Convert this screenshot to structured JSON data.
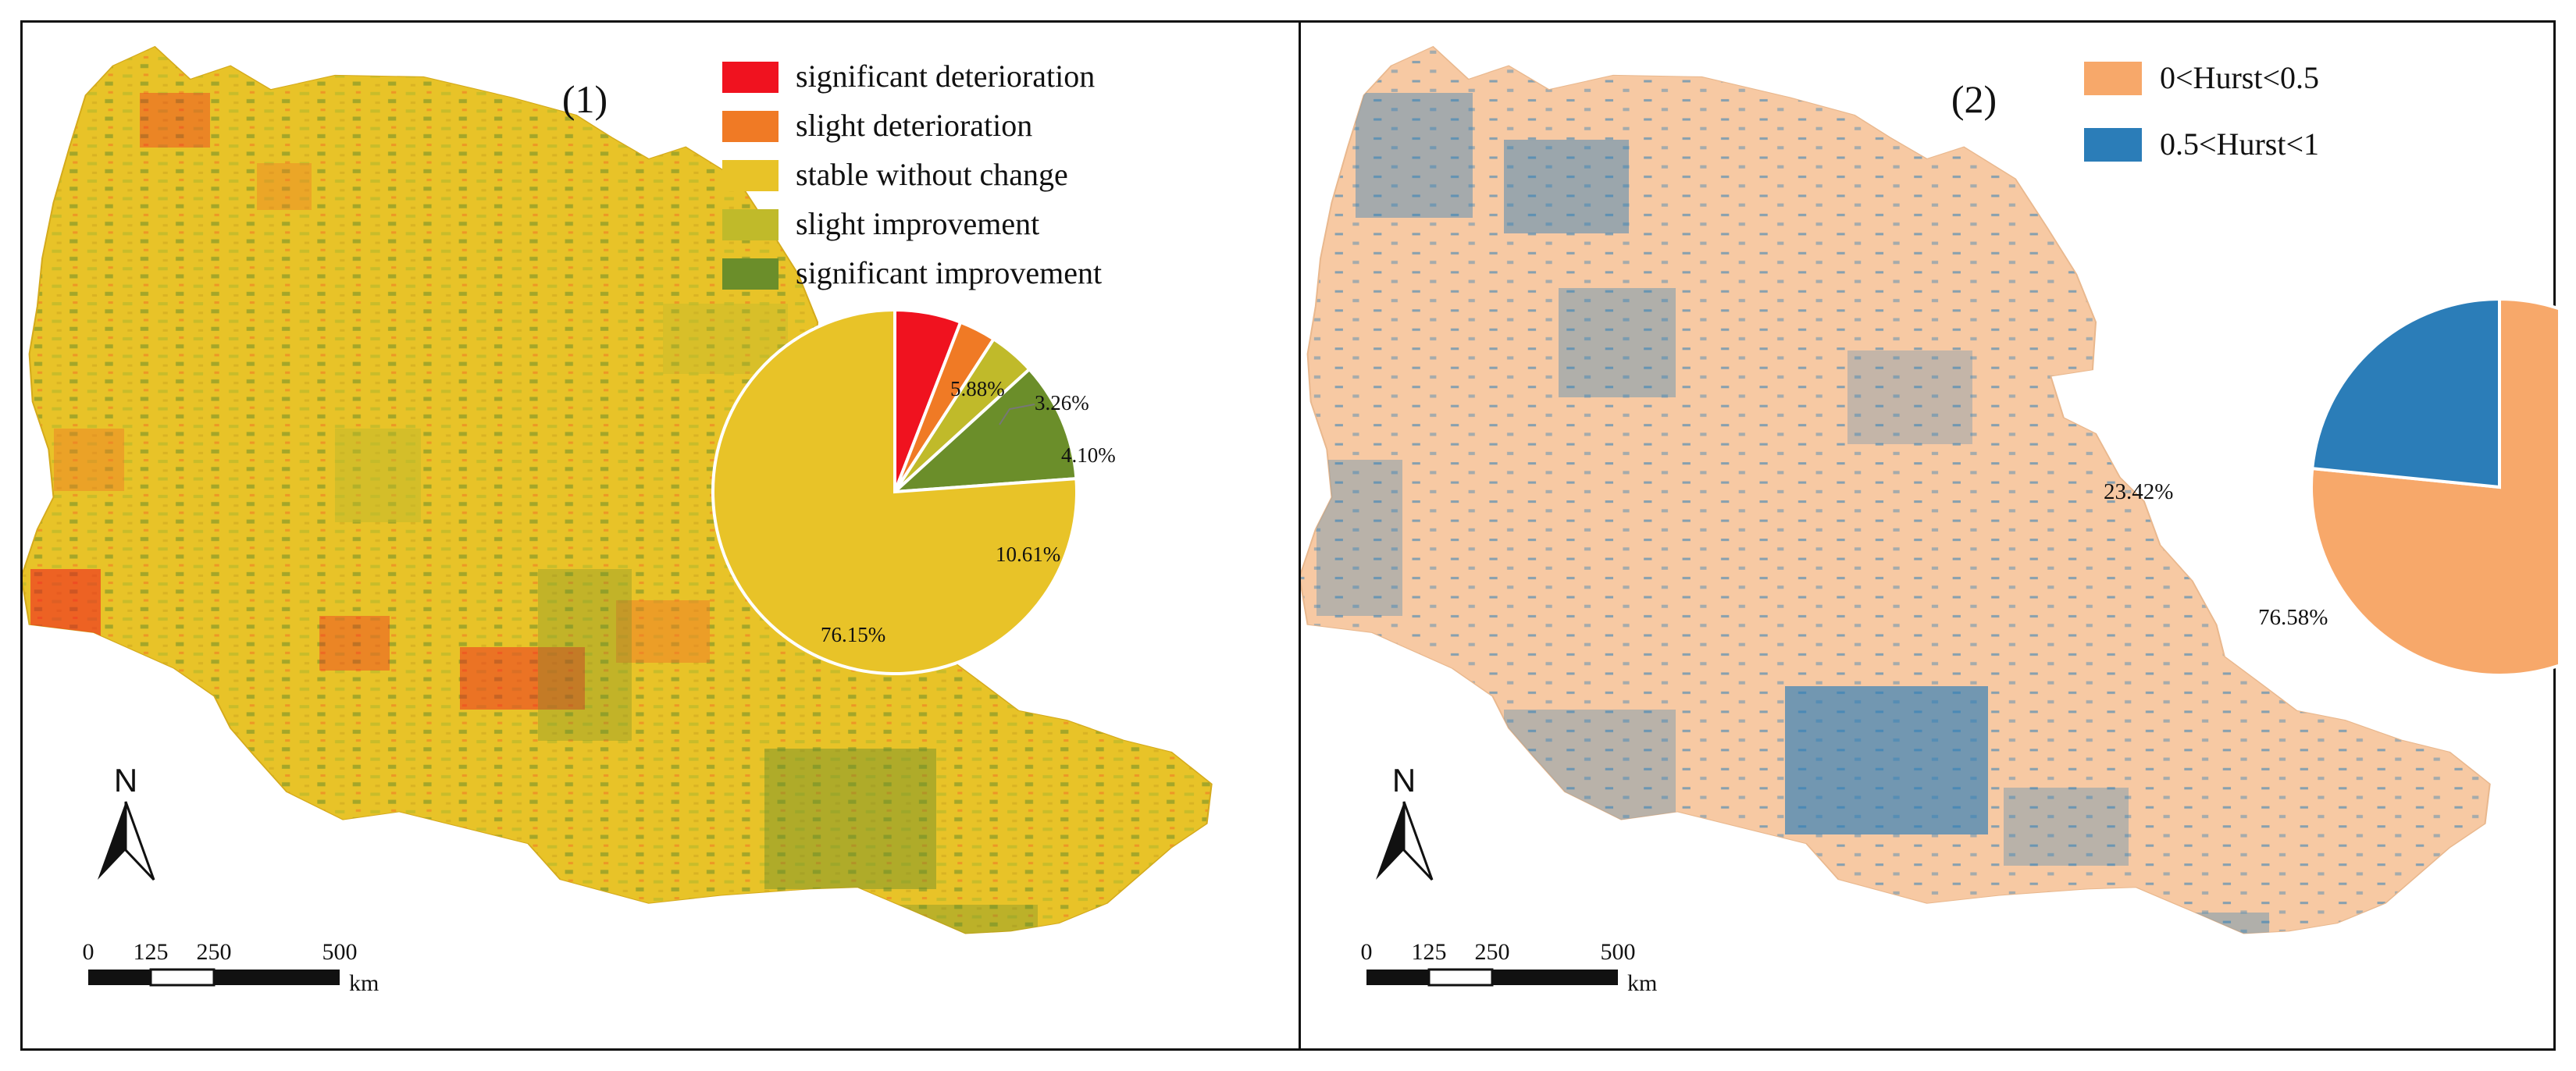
{
  "panels": [
    {
      "label": "(1)",
      "legend": [
        {
          "label": "significant deterioration",
          "color": "#f0121f"
        },
        {
          "label": "slight deterioration",
          "color": "#f07a25"
        },
        {
          "label": "stable without change",
          "color": "#e8c328"
        },
        {
          "label": "slight improvement",
          "color": "#c0ba2a"
        },
        {
          "label": "significant improvement",
          "color": "#6b8e2a"
        }
      ],
      "pie_labels": [
        "5.88%",
        "3.26%",
        "4.10%",
        "10.61%",
        "76.15%"
      ],
      "north_label": "N",
      "scale": {
        "ticks": [
          "0",
          "125",
          "250",
          "500"
        ],
        "unit": "km"
      }
    },
    {
      "label": "(2)",
      "legend": [
        {
          "label": "0<Hurst<0.5",
          "color": "#f7a86a"
        },
        {
          "label": "0.5<Hurst<1",
          "color": "#2b7db8"
        }
      ],
      "pie_labels": [
        "23.42%",
        "76.58%"
      ],
      "north_label": "N",
      "scale": {
        "ticks": [
          "0",
          "125",
          "250",
          "500"
        ],
        "unit": "km"
      }
    }
  ],
  "chart_data": [
    {
      "type": "pie",
      "categories": [
        "significant deterioration",
        "slight deterioration",
        "stable without change",
        "slight improvement",
        "significant improvement"
      ],
      "values": [
        5.88,
        3.26,
        76.15,
        4.1,
        10.61
      ],
      "colors": [
        "#f0121f",
        "#f07a25",
        "#e8c328",
        "#c0ba2a",
        "#6b8e2a"
      ],
      "draw_order": [
        0,
        1,
        3,
        4,
        2
      ]
    },
    {
      "type": "pie",
      "categories": [
        "0<Hurst<0.5",
        "0.5<Hurst<1"
      ],
      "values": [
        76.58,
        23.42
      ],
      "colors": [
        "#f7a86a",
        "#2b7db8"
      ],
      "draw_order": [
        0,
        1
      ]
    }
  ]
}
